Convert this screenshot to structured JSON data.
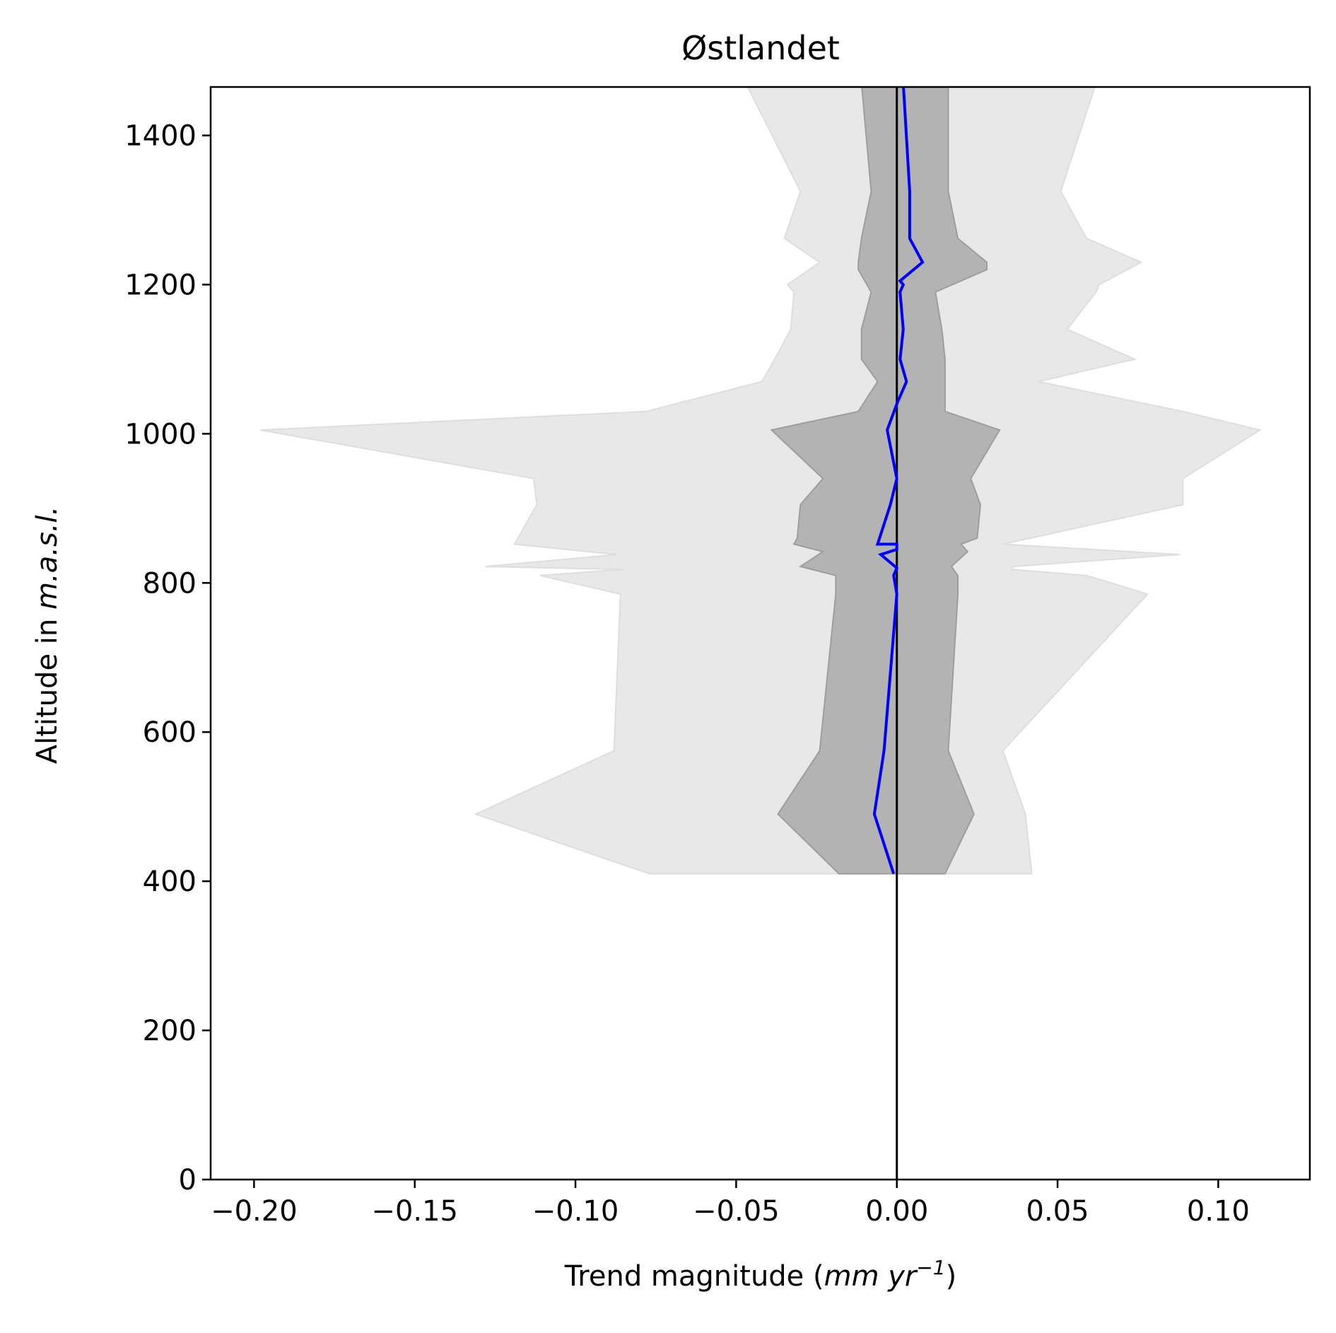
{
  "chart_data": {
    "type": "area",
    "title": "Østlandet",
    "xlabel": {
      "prefix": "Trend magnitude (",
      "math": "mm yr",
      "sup": "−1",
      "suffix": ")"
    },
    "ylabel": {
      "prefix": "Altitude in ",
      "math": "m.a.s.l."
    },
    "xlim": [
      -0.2135,
      0.1285
    ],
    "ylim": [
      0,
      1465
    ],
    "xticks": [
      {
        "value": -0.2,
        "label": "−0.20"
      },
      {
        "value": -0.15,
        "label": "−0.15"
      },
      {
        "value": -0.1,
        "label": "−0.10"
      },
      {
        "value": -0.05,
        "label": "−0.05"
      },
      {
        "value": 0.0,
        "label": "0.00"
      },
      {
        "value": 0.05,
        "label": "0.05"
      },
      {
        "value": 0.1,
        "label": "0.10"
      }
    ],
    "yticks": [
      {
        "value": 0,
        "label": "0"
      },
      {
        "value": 200,
        "label": "200"
      },
      {
        "value": 400,
        "label": "400"
      },
      {
        "value": 600,
        "label": "600"
      },
      {
        "value": 800,
        "label": "800"
      },
      {
        "value": 1000,
        "label": "1000"
      },
      {
        "value": 1200,
        "label": "1200"
      },
      {
        "value": 1400,
        "label": "1400"
      }
    ],
    "grid": false,
    "vertical_reference_line": {
      "x": 0,
      "color": "#000000"
    },
    "series": [
      {
        "role": "outer-range",
        "color": "#e8e8e8",
        "edge": "#dedede",
        "y": [
          410,
          490,
          575,
          785,
          810,
          818,
          822,
          838,
          852,
          905,
          940,
          1005,
          1030,
          1070,
          1100,
          1140,
          1190,
          1200,
          1230,
          1262,
          1325,
          1470
        ],
        "lower": [
          -0.077,
          -0.131,
          -0.088,
          -0.086,
          -0.111,
          -0.085,
          -0.128,
          -0.087,
          -0.119,
          -0.112,
          -0.113,
          -0.198,
          -0.078,
          -0.042,
          -0.038,
          -0.033,
          -0.032,
          -0.034,
          -0.024,
          -0.035,
          -0.03,
          -0.047
        ],
        "upper": [
          0.042,
          0.04,
          0.033,
          0.078,
          0.059,
          0.036,
          0.036,
          0.088,
          0.033,
          0.089,
          0.089,
          0.113,
          0.089,
          0.044,
          0.074,
          0.053,
          0.062,
          0.063,
          0.076,
          0.059,
          0.051,
          0.062
        ]
      },
      {
        "role": "inner-range",
        "color": "#b3b3b3",
        "edge": "#9e9e9e",
        "y": [
          410,
          490,
          575,
          785,
          810,
          822,
          842,
          852,
          860,
          905,
          940,
          1005,
          1030,
          1070,
          1100,
          1140,
          1190,
          1220,
          1230,
          1262,
          1325,
          1470
        ],
        "lower": [
          -0.018,
          -0.037,
          -0.024,
          -0.019,
          -0.019,
          -0.03,
          -0.023,
          -0.032,
          -0.031,
          -0.03,
          -0.023,
          -0.039,
          -0.012,
          -0.006,
          -0.011,
          -0.011,
          -0.008,
          -0.012,
          -0.012,
          -0.011,
          -0.008,
          -0.011
        ],
        "upper": [
          0.015,
          0.024,
          0.016,
          0.019,
          0.019,
          0.017,
          0.022,
          0.02,
          0.025,
          0.026,
          0.023,
          0.032,
          0.015,
          0.015,
          0.015,
          0.014,
          0.012,
          0.028,
          0.028,
          0.019,
          0.016,
          0.016
        ]
      },
      {
        "role": "median",
        "color": "#0000ff",
        "x": [
          -0.001,
          -0.007,
          -0.004,
          0.0,
          -0.001,
          0.0,
          -0.005,
          0.0,
          0.0,
          -0.006,
          -0.002,
          0.0,
          -0.003,
          0.0,
          0.003,
          0.001,
          0.002,
          0.001,
          0.002,
          0.001,
          0.008,
          0.004,
          0.004,
          0.002
        ],
        "y": [
          410,
          490,
          575,
          785,
          810,
          820,
          838,
          845,
          852,
          852,
          905,
          940,
          1005,
          1040,
          1070,
          1100,
          1140,
          1190,
          1200,
          1205,
          1230,
          1262,
          1325,
          1470
        ]
      }
    ]
  }
}
